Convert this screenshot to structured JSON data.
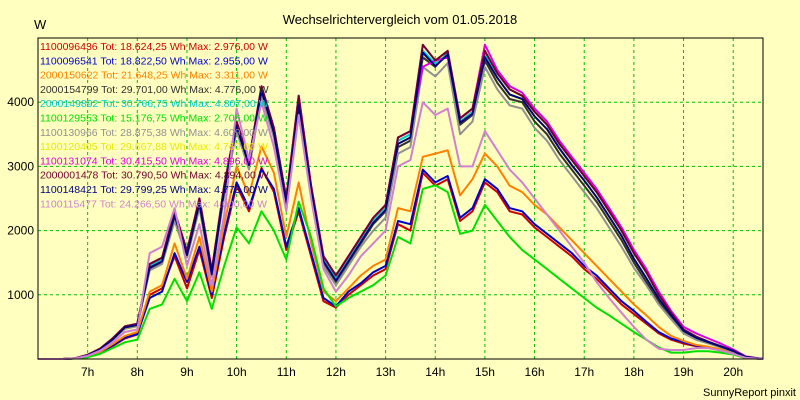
{
  "chart_data": {
    "type": "line",
    "title": "Wechselrichtervergleich vom 01.05.2018",
    "ylabel": "W",
    "xlabel": "",
    "footer": "SunnyReport pinxit",
    "xlim": [
      6.0,
      20.6
    ],
    "ylim": [
      0,
      5000
    ],
    "yticks": [
      1000,
      2000,
      3000,
      4000
    ],
    "xticks": [
      7,
      8,
      9,
      10,
      11,
      12,
      13,
      14,
      15,
      16,
      17,
      18,
      19,
      20
    ],
    "xtick_labels": [
      "7h",
      "8h",
      "9h",
      "10h",
      "11h",
      "12h",
      "13h",
      "14h",
      "15h",
      "16h",
      "17h",
      "18h",
      "19h",
      "20h"
    ],
    "grid": true,
    "legend_position": "top-left",
    "x": [
      6.0,
      6.5,
      6.75,
      7.0,
      7.25,
      7.5,
      7.75,
      8.0,
      8.25,
      8.5,
      8.75,
      9.0,
      9.25,
      9.5,
      9.75,
      10.0,
      10.25,
      10.5,
      10.75,
      11.0,
      11.25,
      11.5,
      11.75,
      12.0,
      12.25,
      12.5,
      12.75,
      13.0,
      13.25,
      13.5,
      13.75,
      14.0,
      14.25,
      14.5,
      14.75,
      15.0,
      15.25,
      15.5,
      15.75,
      16.0,
      16.25,
      16.5,
      16.75,
      17.0,
      17.25,
      17.5,
      17.75,
      18.0,
      18.25,
      18.5,
      18.75,
      19.0,
      19.25,
      19.5,
      19.75,
      20.0,
      20.25,
      20.6
    ],
    "series": [
      {
        "name": "1100096436 Tot: 18.624,25 Wh Max: 2.976,00 W",
        "color": "#cc0000",
        "values": [
          0,
          0,
          10,
          40,
          100,
          200,
          320,
          380,
          1000,
          1100,
          1600,
          1100,
          1700,
          950,
          1900,
          2700,
          2300,
          2976,
          2600,
          1700,
          2300,
          1600,
          900,
          800,
          1000,
          1150,
          1300,
          1400,
          2100,
          2000,
          2900,
          2700,
          2800,
          2150,
          2300,
          2750,
          2600,
          2300,
          2250,
          2050,
          1900,
          1750,
          1600,
          1400,
          1250,
          1050,
          850,
          700,
          550,
          400,
          300,
          240,
          200,
          180,
          130,
          80,
          20,
          0
        ]
      },
      {
        "name": "1100096541 Tot: 18.822,50 Wh Max: 2.955,00 W",
        "color": "#0000cc",
        "values": [
          0,
          0,
          10,
          40,
          100,
          210,
          330,
          390,
          950,
          1050,
          1650,
          1200,
          1750,
          1000,
          1950,
          2750,
          2350,
          2955,
          2650,
          1750,
          2350,
          1650,
          950,
          820,
          1050,
          1180,
          1350,
          1450,
          2150,
          2100,
          2950,
          2750,
          2850,
          2200,
          2350,
          2800,
          2650,
          2350,
          2300,
          2100,
          1950,
          1800,
          1650,
          1450,
          1300,
          1100,
          900,
          750,
          580,
          420,
          320,
          260,
          210,
          180,
          140,
          90,
          20,
          0
        ]
      },
      {
        "name": "2000150622 Tot: 21.648,25 Wh Max: 3.311,00 W",
        "color": "#ff8000",
        "values": [
          0,
          0,
          10,
          45,
          110,
          230,
          360,
          420,
          1050,
          1150,
          1800,
          1250,
          1900,
          1050,
          2100,
          3000,
          2550,
          3311,
          2900,
          1900,
          2750,
          1800,
          1050,
          900,
          1100,
          1300,
          1450,
          1550,
          2350,
          2300,
          3150,
          3200,
          3250,
          2550,
          2800,
          3200,
          3000,
          2700,
          2600,
          2400,
          2250,
          2050,
          1850,
          1650,
          1450,
          1250,
          1050,
          850,
          680,
          500,
          360,
          280,
          220,
          190,
          150,
          100,
          25,
          0
        ]
      },
      {
        "name": "2000154799 Tot: 29.701,00 Wh Max: 4.776,00 W",
        "color": "#303030",
        "values": [
          0,
          0,
          10,
          60,
          150,
          300,
          480,
          520,
          1400,
          1500,
          2200,
          1600,
          2400,
          1300,
          2600,
          3600,
          3000,
          4150,
          3500,
          2400,
          3900,
          2600,
          1500,
          1200,
          1500,
          1800,
          2100,
          2300,
          3300,
          3400,
          4700,
          4550,
          4776,
          3650,
          3800,
          4650,
          4300,
          4050,
          4000,
          3700,
          3500,
          3200,
          2950,
          2700,
          2450,
          2150,
          1850,
          1500,
          1200,
          900,
          650,
          420,
          320,
          250,
          190,
          120,
          30,
          0
        ]
      },
      {
        "name": "2000149892 Tot: 30.766,75 Wh Max: 4.807,00 W",
        "color": "#00cccc",
        "values": [
          0,
          0,
          12,
          60,
          155,
          310,
          500,
          540,
          1450,
          1550,
          2250,
          1650,
          2450,
          1350,
          2650,
          3650,
          3050,
          4200,
          3550,
          2450,
          4000,
          2650,
          1550,
          1250,
          1550,
          1850,
          2150,
          2350,
          3400,
          3500,
          4807,
          4600,
          4750,
          3700,
          3850,
          4750,
          4450,
          4200,
          4100,
          3850,
          3650,
          3350,
          3100,
          2850,
          2600,
          2300,
          2000,
          1650,
          1350,
          1000,
          720,
          460,
          350,
          270,
          200,
          130,
          35,
          0
        ]
      },
      {
        "name": "1100129553 Tot: 15.176,75 Wh Max: 2.706,00 W",
        "color": "#00e000",
        "values": [
          0,
          0,
          8,
          30,
          80,
          170,
          260,
          300,
          780,
          850,
          1250,
          900,
          1350,
          780,
          1450,
          2050,
          1800,
          2300,
          2000,
          1550,
          2450,
          1900,
          1100,
          820,
          950,
          1050,
          1150,
          1300,
          1900,
          1800,
          2650,
          2706,
          2600,
          1950,
          2000,
          2400,
          2150,
          1900,
          1700,
          1550,
          1400,
          1250,
          1100,
          950,
          800,
          680,
          550,
          420,
          300,
          180,
          100,
          100,
          120,
          120,
          100,
          70,
          15,
          0
        ]
      },
      {
        "name": "1100130966 Tot: 28.875,38 Wh Max: 4.609,00 W",
        "color": "#909090",
        "values": [
          0,
          0,
          10,
          55,
          145,
          290,
          470,
          510,
          1380,
          1480,
          2150,
          1580,
          2350,
          1280,
          2550,
          3550,
          2950,
          4100,
          3450,
          2350,
          3800,
          2550,
          1450,
          1150,
          1450,
          1750,
          2000,
          2200,
          3200,
          3300,
          4550,
          4400,
          4609,
          3500,
          3700,
          4550,
          4200,
          3950,
          3900,
          3600,
          3400,
          3100,
          2850,
          2600,
          2350,
          2050,
          1750,
          1420,
          1150,
          850,
          620,
          400,
          300,
          240,
          180,
          110,
          28,
          0
        ]
      },
      {
        "name": "1100120405 Tot: 29.667,88 Wh Max: 4.760,00 W",
        "color": "#e8e800",
        "values": [
          0,
          0,
          10,
          58,
          148,
          295,
          485,
          525,
          1420,
          1520,
          2220,
          1620,
          2420,
          1320,
          2620,
          3620,
          3020,
          4180,
          3520,
          2420,
          3950,
          2620,
          1520,
          1220,
          1520,
          1820,
          2120,
          2320,
          3350,
          3450,
          4760,
          4560,
          4740,
          3680,
          3820,
          4700,
          4380,
          4120,
          4050,
          3780,
          3580,
          3280,
          3020,
          2780,
          2520,
          2220,
          1920,
          1560,
          1260,
          940,
          680,
          440,
          330,
          260,
          195,
          125,
          32,
          0
        ]
      },
      {
        "name": "1100131074 Tot: 30.415,50 Wh Max: 4.896,00 W",
        "color": "#e000e0",
        "values": [
          0,
          0,
          12,
          65,
          160,
          320,
          510,
          550,
          1480,
          1580,
          2300,
          1680,
          2500,
          1380,
          2700,
          3700,
          3100,
          4250,
          3600,
          2500,
          4100,
          2700,
          1600,
          1300,
          1600,
          1900,
          2200,
          2400,
          3450,
          3550,
          4550,
          4650,
          4700,
          3750,
          3900,
          4896,
          4500,
          4250,
          4150,
          3900,
          3700,
          3400,
          3150,
          2900,
          2650,
          2350,
          2050,
          1700,
          1400,
          1050,
          750,
          500,
          400,
          320,
          240,
          150,
          40,
          0
        ]
      },
      {
        "name": "2000001478 Tot: 30.790,50 Wh Max: 4.894,00 W",
        "color": "#700030",
        "values": [
          0,
          0,
          12,
          65,
          160,
          320,
          510,
          550,
          1480,
          1580,
          2300,
          1680,
          2500,
          1380,
          2700,
          3700,
          3100,
          4250,
          3600,
          2500,
          4100,
          2700,
          1600,
          1300,
          1600,
          1900,
          2200,
          2400,
          3450,
          3550,
          4894,
          4650,
          4800,
          3750,
          3900,
          4800,
          4450,
          4200,
          4100,
          3850,
          3650,
          3350,
          3100,
          2850,
          2600,
          2300,
          2000,
          1650,
          1350,
          1000,
          720,
          460,
          350,
          270,
          200,
          130,
          35,
          0
        ]
      },
      {
        "name": "1100148421 Tot: 29.799,25 Wh Max: 4.773,00 W",
        "color": "#000080",
        "values": [
          0,
          0,
          10,
          58,
          150,
          300,
          490,
          530,
          1420,
          1520,
          2230,
          1620,
          2420,
          1320,
          2620,
          3620,
          3020,
          4180,
          3520,
          2420,
          3950,
          2620,
          1520,
          1220,
          1520,
          1820,
          2120,
          2320,
          3350,
          3450,
          4773,
          4560,
          4740,
          3680,
          3820,
          4700,
          4380,
          4120,
          4050,
          3780,
          3580,
          3280,
          3020,
          2780,
          2520,
          2220,
          1920,
          1560,
          1260,
          940,
          680,
          440,
          330,
          260,
          195,
          125,
          32,
          0
        ]
      },
      {
        "name": "1100115477 Tot: 24.266,50 Wh Max: 4.000,00 W",
        "color": "#d080d0",
        "values": [
          0,
          0,
          10,
          50,
          130,
          260,
          420,
          460,
          1650,
          1750,
          2350,
          1450,
          2100,
          1150,
          2250,
          3900,
          3100,
          4000,
          3300,
          2300,
          3800,
          2500,
          1400,
          1050,
          1300,
          1600,
          1800,
          2000,
          3000,
          3100,
          4000,
          3800,
          3900,
          3000,
          3000,
          3550,
          3250,
          2950,
          2750,
          2500,
          2250,
          2000,
          1750,
          1500,
          1200,
          950,
          720,
          500,
          300,
          160,
          140,
          140,
          170,
          170,
          130,
          80,
          20,
          0
        ]
      }
    ]
  }
}
